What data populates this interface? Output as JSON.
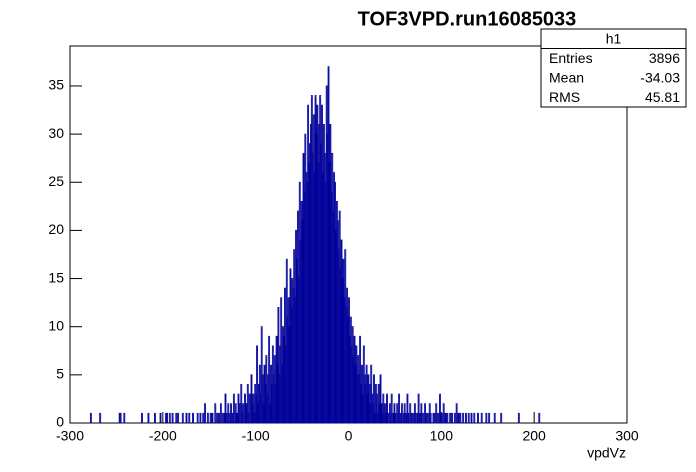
{
  "chart_data": {
    "type": "histogram",
    "title": "TOF3VPD.run16085033",
    "xlabel": "vpdVz",
    "color": "#000099",
    "xlim": [
      -300,
      300
    ],
    "ylim": [
      0,
      39.15
    ],
    "xticks": [
      -300,
      -200,
      -100,
      0,
      100,
      200,
      300
    ],
    "yticks": [
      0,
      5,
      10,
      15,
      20,
      25,
      30,
      35
    ],
    "stats": {
      "title": "h1",
      "rows": [
        {
          "label": "Entries",
          "value": 3896
        },
        {
          "label": "Mean",
          "value": -34.03
        },
        {
          "label": "RMS",
          "value": 45.81
        }
      ]
    },
    "bins": [
      -300,
      -299,
      -298,
      -297,
      -296,
      -295,
      -294,
      -293,
      -292,
      -291,
      -290,
      -289,
      -288,
      -287,
      -286,
      -285,
      -284,
      -283,
      -282,
      -281,
      -280,
      -279,
      -278,
      -277,
      -276,
      -275,
      -274,
      -273,
      -272,
      -271,
      -270,
      -269,
      -268,
      -267,
      -266,
      -265,
      -264,
      -263,
      -262,
      -261,
      -260,
      -259,
      -258,
      -257,
      -256,
      -255,
      -254,
      -253,
      -252,
      -251,
      -250,
      -249,
      -248,
      -247,
      -246,
      -245,
      -244,
      -243,
      -242,
      -241,
      -240,
      -239,
      -238,
      -237,
      -236,
      -235,
      -234,
      -233,
      -232,
      -231,
      -230,
      -229,
      -228,
      -227,
      -226,
      -225,
      -224,
      -223,
      -222,
      -221,
      -220,
      -219,
      -218,
      -217,
      -216,
      -215,
      -214,
      -213,
      -212,
      -211,
      -210,
      -209,
      -208,
      -207,
      -206,
      -205,
      -204,
      -203,
      -202,
      -201,
      -200,
      -199,
      -198,
      -197,
      -196,
      -195,
      -194,
      -193,
      -192,
      -191,
      -190,
      -189,
      -188,
      -187,
      -186,
      -185,
      -184,
      -183,
      -182,
      -181,
      -180,
      -179,
      -178,
      -177,
      -176,
      -175,
      -174,
      -173,
      -172,
      -171,
      -170,
      -169,
      -168,
      -167,
      -166,
      -165,
      -164,
      -163,
      -162,
      -161,
      -160,
      -159,
      -158,
      -157,
      -156,
      -155,
      -154,
      -153,
      -152,
      -151,
      -150,
      -149,
      -148,
      -147,
      -146,
      -145,
      -144,
      -143,
      -142,
      -141,
      -140,
      -139,
      -138,
      -137,
      -136,
      -135,
      -134,
      -133,
      -132,
      -131,
      -130,
      -129,
      -128,
      -127,
      -126,
      -125,
      -124,
      -123,
      -122,
      -121,
      -120,
      -119,
      -118,
      -117,
      -116,
      -115,
      -114,
      -113,
      -112,
      -111,
      -110,
      -109,
      -108,
      -107,
      -106,
      -105,
      -104,
      -103,
      -102,
      -101,
      -100,
      -99,
      -98,
      -97,
      -96,
      -95,
      -94,
      -93,
      -92,
      -91,
      -90,
      -89,
      -88,
      -87,
      -86,
      -85,
      -84,
      -83,
      -82,
      -81,
      -80,
      -79,
      -78,
      -77,
      -76,
      -75,
      -74,
      -73,
      -72,
      -71,
      -70,
      -69,
      -68,
      -67,
      -66,
      -65,
      -64,
      -63,
      -62,
      -61,
      -60,
      -59,
      -58,
      -57,
      -56,
      -55,
      -54,
      -53,
      -52,
      -51,
      -50,
      -49,
      -48,
      -47,
      -46,
      -45,
      -44,
      -43,
      -42,
      -41,
      -40,
      -39,
      -38,
      -37,
      -36,
      -35,
      -34,
      -33,
      -32,
      -31,
      -30,
      -29,
      -28,
      -27,
      -26,
      -25,
      -24,
      -23,
      -22,
      -21,
      -20,
      -19,
      -18,
      -17,
      -16,
      -15,
      -14,
      -13,
      -12,
      -11,
      -10,
      -9,
      -8,
      -7,
      -6,
      -5,
      -4,
      -3,
      -2,
      -1,
      0,
      1,
      2,
      3,
      4,
      5,
      6,
      7,
      8,
      9,
      10,
      11,
      12,
      13,
      14,
      15,
      16,
      17,
      18,
      19,
      20,
      21,
      22,
      23,
      24,
      25,
      26,
      27,
      28,
      29,
      30,
      31,
      32,
      33,
      34,
      35,
      36,
      37,
      38,
      39,
      40,
      41,
      42,
      43,
      44,
      45,
      46,
      47,
      48,
      49,
      50,
      51,
      52,
      53,
      54,
      55,
      56,
      57,
      58,
      59,
      60,
      61,
      62,
      63,
      64,
      65,
      66,
      67,
      68,
      69,
      70,
      71,
      72,
      73,
      74,
      75,
      76,
      77,
      78,
      79,
      80,
      81,
      82,
      83,
      84,
      85,
      86,
      87,
      88,
      89,
      90,
      91,
      92,
      93,
      94,
      95,
      96,
      97,
      98,
      99,
      100,
      101,
      102,
      103,
      104,
      105,
      106,
      107,
      108,
      109,
      110,
      111,
      112,
      113,
      114,
      115,
      116,
      117,
      118,
      119,
      120,
      121,
      122,
      123,
      124,
      125,
      126,
      127,
      128,
      129,
      130,
      131,
      132,
      133,
      134,
      135,
      136,
      137,
      138,
      139,
      140,
      141,
      142,
      143,
      144,
      145,
      146,
      147,
      148,
      149,
      150,
      151,
      152,
      153,
      154,
      155,
      156,
      157,
      158,
      159,
      160,
      161,
      162,
      163,
      164,
      165,
      166,
      167,
      168,
      169,
      170,
      171,
      172,
      173,
      174,
      175,
      176,
      177,
      178,
      179,
      180,
      181,
      182,
      183,
      184,
      185,
      186,
      187,
      188,
      189,
      190,
      191,
      192,
      193,
      194,
      195,
      196,
      197,
      198,
      199,
      200,
      201,
      202,
      203,
      204,
      205,
      206,
      207,
      208,
      209,
      210,
      211,
      212,
      213,
      214,
      215,
      216,
      217,
      218,
      219,
      220,
      221,
      222,
      223,
      224,
      225,
      226,
      227,
      228,
      229,
      230,
      231,
      232,
      233,
      234,
      235,
      236,
      237,
      238,
      239,
      240,
      241,
      242,
      243,
      244,
      245,
      246,
      247,
      248,
      249,
      250,
      251,
      252,
      253,
      254,
      255,
      256,
      257,
      258,
      259,
      260,
      261,
      262,
      263,
      264,
      265,
      266,
      267,
      268,
      269,
      270,
      271,
      272,
      273,
      274,
      275,
      276,
      277,
      278,
      279,
      280,
      281,
      282,
      283,
      284,
      285,
      286,
      287,
      288,
      289,
      290,
      291,
      292,
      293,
      294,
      295,
      296,
      297,
      298,
      299,
      300
    ],
    "counts": [
      0,
      0,
      0,
      0,
      0,
      0,
      0,
      0,
      0,
      0,
      0,
      0,
      0,
      0,
      0,
      0,
      0,
      0,
      0,
      0,
      0,
      0,
      1,
      0,
      0,
      0,
      0,
      0,
      0,
      0,
      0,
      0,
      1,
      0,
      0,
      0,
      0,
      0,
      0,
      0,
      0,
      0,
      0,
      0,
      0,
      0,
      0,
      0,
      0,
      0,
      0,
      0,
      0,
      1,
      1,
      0,
      0,
      0,
      1,
      0,
      0,
      0,
      0,
      0,
      0,
      0,
      0,
      0,
      0,
      0,
      0,
      0,
      0,
      0,
      0,
      0,
      0,
      1,
      0,
      0,
      0,
      0,
      0,
      0,
      1,
      0,
      0,
      0,
      0,
      0,
      0,
      1,
      0,
      0,
      0,
      0,
      0,
      1,
      0,
      0,
      0,
      0,
      0,
      1,
      1,
      0,
      0,
      1,
      0,
      0,
      1,
      0,
      0,
      0,
      1,
      0,
      1,
      0,
      0,
      0,
      0,
      1,
      0,
      0,
      0,
      1,
      0,
      0,
      1,
      0,
      0,
      0,
      1,
      0,
      0,
      0,
      0,
      1,
      0,
      0,
      1,
      0,
      0,
      1,
      0,
      2,
      0,
      0,
      1,
      0,
      0,
      1,
      0,
      1,
      0,
      0,
      2,
      0,
      1,
      0,
      1,
      0,
      2,
      0,
      1,
      0,
      1,
      3,
      0,
      1,
      2,
      0,
      1,
      2,
      0,
      1,
      3,
      0,
      2,
      1,
      1,
      3,
      0,
      2,
      4,
      1,
      2,
      0,
      3,
      2,
      2,
      4,
      1,
      3,
      0,
      5,
      2,
      3,
      1,
      4,
      3,
      8,
      2,
      4,
      6,
      3,
      10,
      5,
      2,
      6,
      4,
      7,
      3,
      5,
      9,
      2,
      6,
      4,
      8,
      5,
      7,
      4,
      9,
      6,
      12,
      5,
      8,
      13,
      6,
      10,
      9,
      14,
      8,
      17,
      11,
      13,
      10,
      16,
      12,
      15,
      14,
      18,
      13,
      20,
      17,
      22,
      15,
      25,
      19,
      23,
      21,
      28,
      24,
      30,
      26,
      25,
      33,
      27,
      29,
      31,
      34,
      28,
      32,
      26,
      34,
      30,
      33,
      27,
      31,
      34,
      29,
      33,
      26,
      31,
      28,
      25,
      35,
      30,
      37,
      27,
      31,
      24,
      28,
      22,
      26,
      25,
      20,
      23,
      21,
      18,
      22,
      16,
      19,
      15,
      17,
      13,
      18,
      12,
      14,
      11,
      13,
      9,
      11,
      8,
      10,
      7,
      9,
      6,
      8,
      5,
      7,
      5,
      9,
      4,
      6,
      3,
      8,
      5,
      4,
      6,
      3,
      5,
      2,
      4,
      6,
      3,
      2,
      5,
      1,
      4,
      3,
      1,
      4,
      2,
      5,
      2,
      1,
      3,
      2,
      1,
      2,
      3,
      1,
      0,
      2,
      1,
      3,
      0,
      1,
      2,
      1,
      0,
      2,
      1,
      3,
      0,
      1,
      2,
      0,
      1,
      2,
      1,
      0,
      3,
      1,
      0,
      2,
      1,
      0,
      1,
      0,
      2,
      1,
      0,
      1,
      3,
      0,
      1,
      2,
      0,
      1,
      0,
      2,
      1,
      0,
      1,
      0,
      2,
      1,
      0,
      0,
      1,
      0,
      1,
      2,
      0,
      1,
      0,
      3,
      1,
      1,
      0,
      2,
      0,
      1,
      0,
      1,
      0,
      0,
      1,
      0,
      1,
      0,
      0,
      1,
      0,
      2,
      0,
      1,
      0,
      1,
      0,
      0,
      1,
      0,
      0,
      1,
      0,
      0,
      1,
      0,
      0,
      1,
      0,
      0,
      1,
      0,
      0,
      0,
      1,
      0,
      0,
      0,
      1,
      0,
      0,
      0,
      0,
      1,
      0,
      0,
      1,
      0,
      0,
      0,
      0,
      0,
      1,
      0,
      0,
      0,
      0,
      0,
      0,
      1,
      0,
      0,
      0,
      0,
      0,
      0,
      0,
      0,
      0,
      0,
      0,
      0,
      0,
      0,
      0,
      0,
      0,
      0,
      1,
      0,
      0,
      0,
      0,
      0,
      0,
      0,
      0,
      0,
      0,
      0,
      0,
      0,
      0,
      0,
      0,
      0,
      0,
      0,
      0,
      0,
      1,
      0,
      0,
      0,
      0,
      0,
      0,
      0,
      0,
      0,
      0,
      0,
      0,
      0,
      0,
      0,
      0,
      0,
      0,
      0,
      0,
      0,
      0,
      0,
      0,
      0,
      0,
      0,
      0,
      0,
      0,
      0,
      0,
      0,
      0,
      0,
      0,
      0,
      0,
      0,
      0,
      0,
      0,
      0,
      0,
      0,
      0,
      0,
      0,
      0,
      0,
      0,
      0,
      0,
      0,
      0,
      0,
      0,
      0,
      0,
      0,
      0,
      0,
      0,
      0,
      0,
      0,
      0,
      0,
      0,
      0,
      0,
      0,
      0,
      0,
      0,
      0,
      0,
      0,
      0,
      0,
      0,
      0,
      0,
      0,
      0,
      0,
      0,
      0,
      0,
      0,
      0,
      0,
      0,
      0
    ]
  }
}
